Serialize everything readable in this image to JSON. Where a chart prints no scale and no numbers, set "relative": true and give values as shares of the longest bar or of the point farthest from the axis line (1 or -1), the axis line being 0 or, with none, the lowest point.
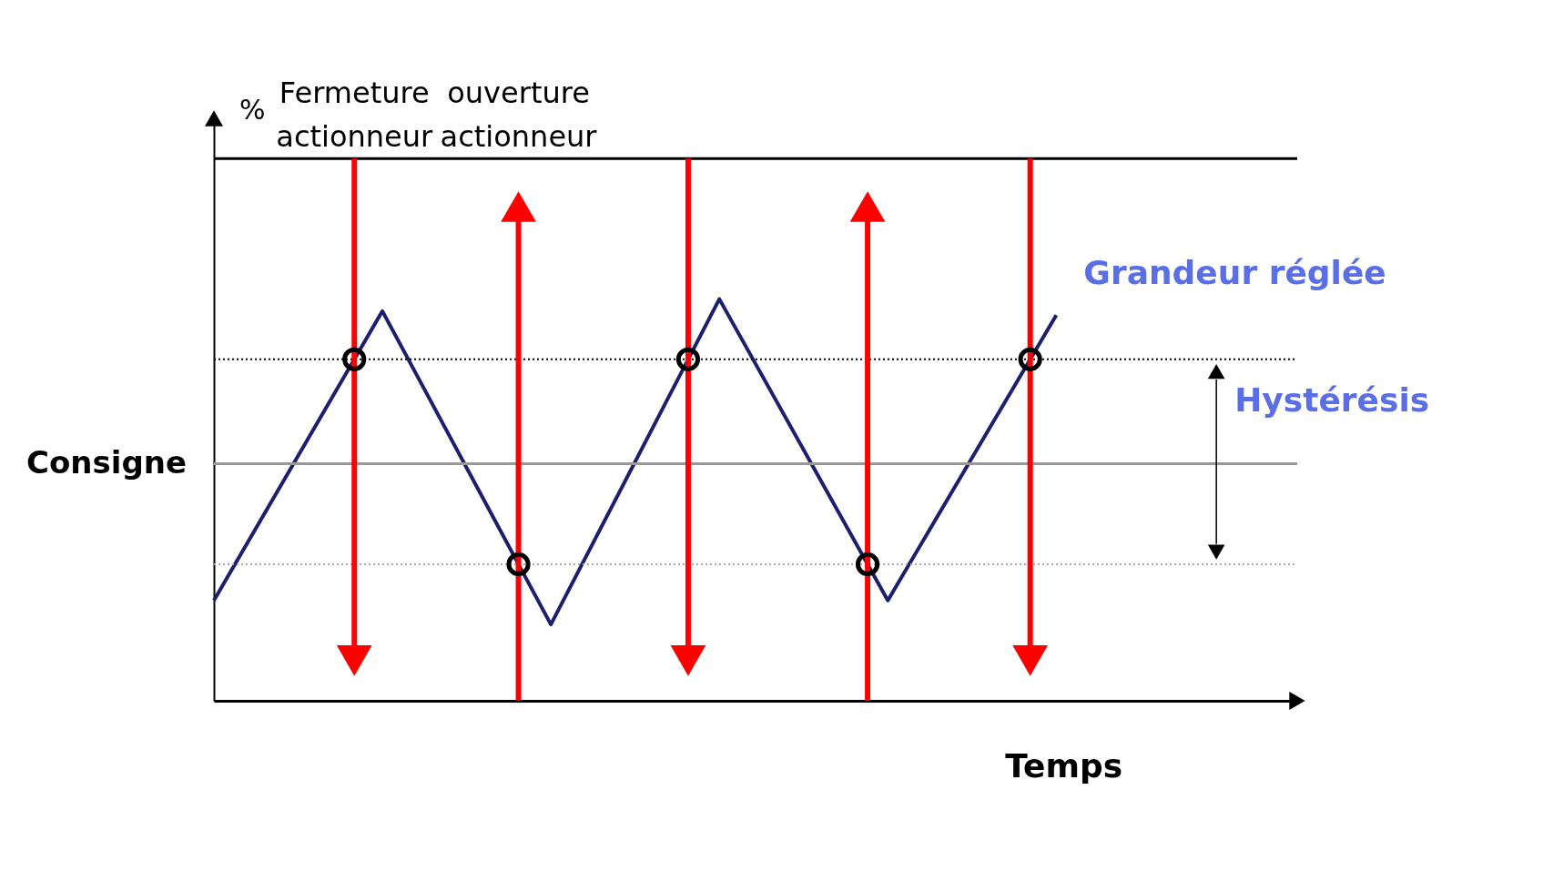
{
  "chart_data": {
    "type": "line",
    "relative": true,
    "xlabel": "Temps",
    "categories": [
      null,
      null,
      null,
      null,
      null,
      null
    ],
    "series": [
      {
        "name": "Grandeur réglée",
        "color": "#1a1f6e",
        "values": [
          0.25,
          0.97,
          0.19,
          1.0,
          0.25,
          0.96
        ]
      }
    ],
    "ref_lines": [
      {
        "axis": "y",
        "value": 1.35,
        "color": "#000000",
        "line_style": "solid"
      },
      {
        "axis": "y",
        "value": 0.85,
        "color": "#000000",
        "line_style": "dotted"
      },
      {
        "axis": "y",
        "value": 0.59,
        "label": "Consigne",
        "color": "#999999",
        "line_style": "solid"
      },
      {
        "axis": "y",
        "value": 0.34,
        "color": "#aaaaaa",
        "line_style": "dotted"
      }
    ],
    "annotations": [
      "Fermeture actionneur",
      "ouverture actionneur",
      "Hystérésis",
      "%"
    ],
    "grid": false,
    "legend": false,
    "marker": "none",
    "line_style": "solid"
  }
}
